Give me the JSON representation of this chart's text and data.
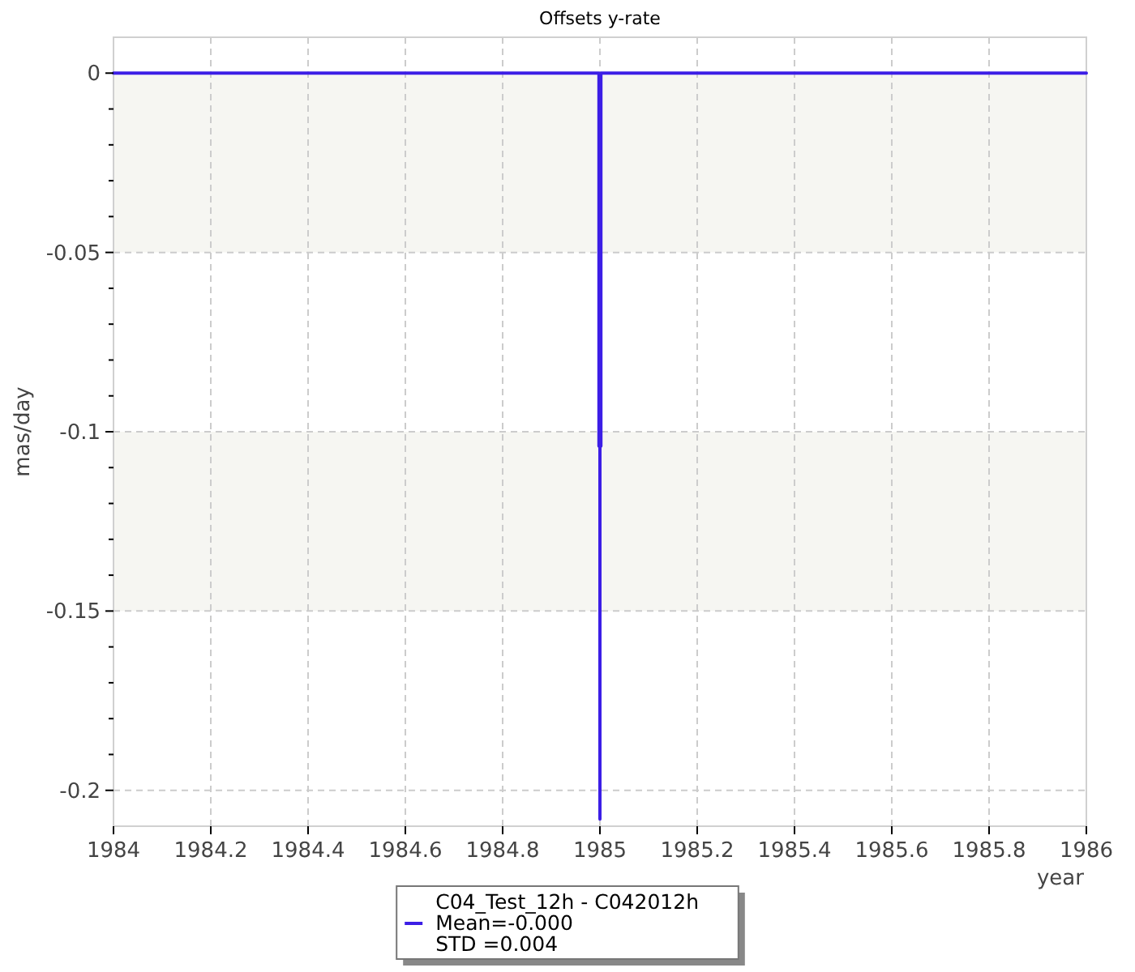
{
  "chart_data": {
    "type": "line",
    "title": "Offsets y-rate",
    "xlabel": "year",
    "ylabel": "mas/day",
    "x": [
      1984,
      1984.998,
      1984.998,
      1985,
      1985,
      1985,
      1985.002,
      1985.002,
      1986
    ],
    "series": [
      {
        "name": "C04_Test_12h - C042012h",
        "color": "#3c1ee6",
        "values": [
          0,
          0,
          -0.104,
          -0.104,
          -0.208,
          -0.104,
          -0.104,
          0,
          0
        ]
      }
    ],
    "annotations": [
      "Mean=-0.000",
      "STD =0.004"
    ],
    "xlim": [
      1984,
      1986
    ],
    "xticks": [
      1984,
      {
        "value": 1984.2,
        "label": "1984.2"
      },
      {
        "value": 1984.4,
        "label": "1984.4"
      },
      {
        "value": 1984.6,
        "label": "1984.6"
      },
      {
        "value": 1984.8,
        "label": "1984.8"
      },
      1985,
      {
        "value": 1985.2,
        "label": "1985.2"
      },
      {
        "value": 1985.4,
        "label": "1985.4"
      },
      {
        "value": 1985.6,
        "label": "1985.6"
      },
      {
        "value": 1985.8,
        "label": "1985.8"
      },
      1986
    ],
    "ylim": [
      -0.21,
      0.01
    ],
    "yticks": [
      0,
      {
        "value": -0.01,
        "label": null
      },
      {
        "value": -0.02,
        "label": null
      },
      {
        "value": -0.03,
        "label": null
      },
      {
        "value": -0.04,
        "label": null
      },
      -0.05,
      {
        "value": -0.06,
        "label": null
      },
      {
        "value": -0.07,
        "label": null
      },
      {
        "value": -0.08,
        "label": null
      },
      {
        "value": -0.09,
        "label": null
      },
      -0.1,
      {
        "value": -0.11,
        "label": null
      },
      {
        "value": -0.12,
        "label": null
      },
      {
        "value": -0.13,
        "label": null
      },
      {
        "value": -0.14,
        "label": null
      },
      -0.15,
      {
        "value": -0.16,
        "label": null
      },
      {
        "value": -0.17,
        "label": null
      },
      {
        "value": -0.18,
        "label": null
      },
      {
        "value": -0.19,
        "label": null
      },
      -0.2
    ],
    "bands": [
      {
        "axis": "y",
        "from": 0,
        "to": -0.05,
        "color": "#f6f6f2"
      },
      {
        "axis": "y",
        "from": -0.1,
        "to": -0.15,
        "color": "#f6f6f2"
      }
    ],
    "grid": true,
    "legend": "bottom",
    "line_style": "solid",
    "marker": "none"
  }
}
